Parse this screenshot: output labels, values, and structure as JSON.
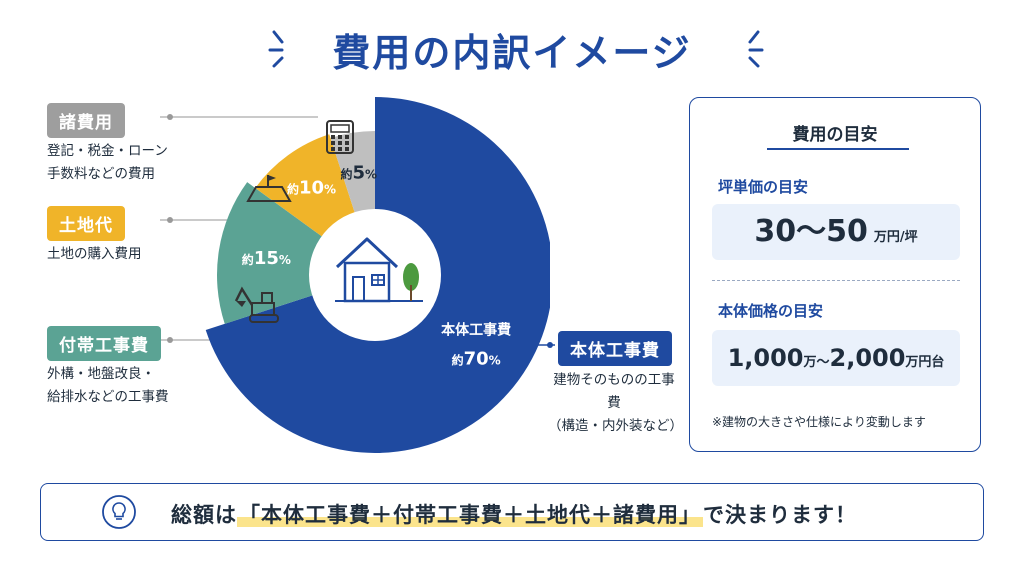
{
  "title": "費用の内訳イメージ",
  "legend": {
    "shohiyo": {
      "label": "諸費用",
      "desc": [
        "登記・税金・ローン",
        "手数料などの費用"
      ]
    },
    "tochi": {
      "label": "土地代",
      "desc": [
        "土地の購入費用"
      ]
    },
    "futai": {
      "label": "付帯工事費",
      "desc": [
        "外構・地盤改良・",
        "給排水などの工事費"
      ]
    },
    "hontai": {
      "label": "本体工事費",
      "desc": [
        "建物そのものの工事費",
        "（構造・内外装など）"
      ]
    }
  },
  "chart_data": {
    "type": "pie",
    "slices": [
      {
        "name": "本体工事費",
        "value": 70,
        "label_prefix": "約",
        "label_value": "70",
        "label_unit": "%",
        "color": "#1f4aa0"
      },
      {
        "name": "付帯工事費",
        "value": 15,
        "label_prefix": "約",
        "label_value": "15",
        "label_unit": "%",
        "color": "#5ba394"
      },
      {
        "name": "土地代",
        "value": 10,
        "label_prefix": "約",
        "label_value": "10",
        "label_unit": "%",
        "color": "#f0b429"
      },
      {
        "name": "諸費用",
        "value": 5,
        "label_prefix": "約",
        "label_value": "5",
        "label_unit": "%",
        "color": "#bfbfbf"
      }
    ]
  },
  "panel": {
    "title": "費用の目安",
    "tsubo_label": "坪単価の目安",
    "tsubo_value": "30～50",
    "tsubo_unit": "万円/坪",
    "hontai_label": "本体価格の目安",
    "hontai_value_a": "1,000",
    "hontai_unit_a": "万～",
    "hontai_value_b": "2,000",
    "hontai_unit_b": "万円台",
    "note": "※建物の大きさや仕様により変動します"
  },
  "footer": {
    "prefix": "総額は",
    "highlight": "「本体工事費＋付帯工事費＋土地代＋諸費用」",
    "suffix": "で決まります！"
  },
  "colors": {
    "navy": "#1f4aa0",
    "teal": "#5ba394",
    "yellow": "#f0b429",
    "gray": "#bfbfbf",
    "gray_pill": "#9e9e9e"
  },
  "icons": [
    "calculator-icon",
    "land-icon",
    "excavator-icon",
    "house-icon",
    "lightbulb-icon"
  ]
}
